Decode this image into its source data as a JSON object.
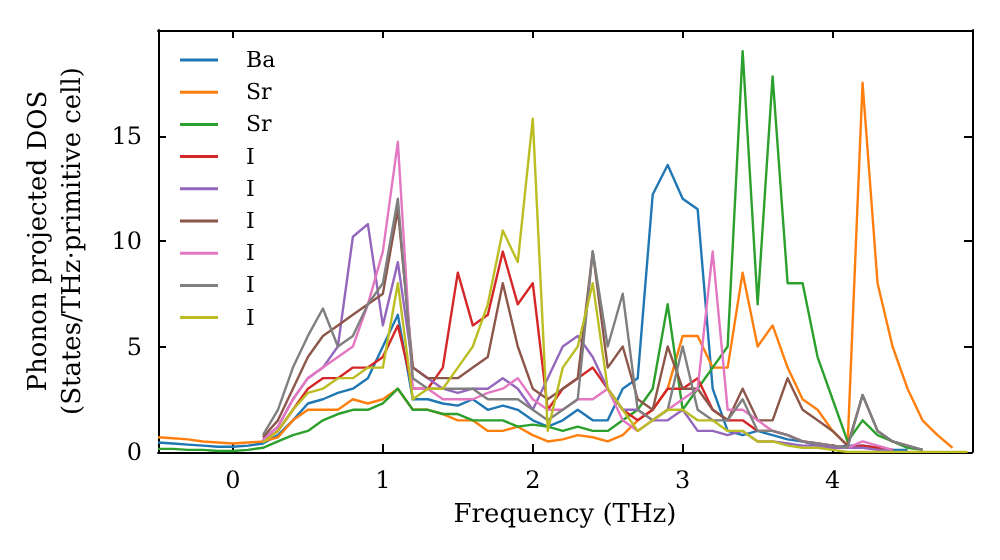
{
  "chart_data": {
    "type": "line",
    "xlabel": "Frequency (THz)",
    "ylabel": "Phonon projected DOS\n(States/THz·primitive cell)",
    "x": [
      -0.5,
      -0.4,
      -0.3,
      -0.2,
      -0.1,
      0,
      0.1,
      0.2,
      0.3,
      0.4,
      0.5,
      0.6,
      0.7,
      0.8,
      0.9,
      1,
      1.1,
      1.2,
      1.3,
      1.4,
      1.5,
      1.6,
      1.7,
      1.8,
      1.9,
      2,
      2.1,
      2.2,
      2.3,
      2.4,
      2.5,
      2.6,
      2.7,
      2.8,
      2.9,
      3,
      3.1,
      3.2,
      3.3,
      3.4,
      3.5,
      3.6,
      3.7,
      3.8,
      3.9,
      4,
      4.1,
      4.2,
      4.3,
      4.4,
      4.5,
      4.6,
      4.7,
      4.8,
      4.9
    ],
    "series": [
      {
        "name": "Ba",
        "color": "#1f77b4",
        "values": [
          0.45,
          0.4,
          0.35,
          0.3,
          0.25,
          0.25,
          0.3,
          0.4,
          0.8,
          1.5,
          2.3,
          2.5,
          2.8,
          3,
          3.5,
          5,
          6.5,
          2.5,
          2.5,
          2.3,
          2.2,
          2.5,
          2,
          2.2,
          2,
          1.5,
          1.2,
          1.5,
          2,
          1.5,
          1.5,
          3,
          3.5,
          12.2,
          13.6,
          12,
          11.5,
          3,
          1,
          0.8,
          1,
          0.8,
          0.6,
          0.5,
          0.3,
          0.2,
          0.3,
          0.3,
          0.2,
          0.1,
          0.1,
          null,
          null,
          null,
          null
        ]
      },
      {
        "name": "Sr",
        "color": "#ff7f0e",
        "values": [
          0.7,
          0.65,
          0.6,
          0.5,
          0.45,
          0.4,
          0.45,
          0.5,
          0.7,
          1.5,
          2,
          2,
          2,
          2.5,
          2.3,
          2.5,
          3,
          2,
          2,
          1.8,
          1.5,
          1.5,
          1,
          1,
          1.2,
          0.8,
          0.5,
          0.6,
          0.8,
          0.7,
          0.5,
          0.8,
          1.5,
          2,
          3,
          5.5,
          5.5,
          4,
          4,
          8.5,
          5,
          6,
          4,
          2.5,
          2,
          1,
          0.3,
          17.5,
          8,
          5,
          3,
          1.5,
          0.8,
          0.2,
          null
        ]
      },
      {
        "name": "Sr",
        "color": "#2ca02c",
        "values": [
          0.15,
          0.15,
          0.1,
          0.1,
          0.05,
          0.05,
          0.1,
          0.2,
          0.5,
          0.8,
          1,
          1.5,
          1.8,
          2,
          2,
          2.3,
          3,
          2,
          2,
          1.8,
          1.8,
          1.5,
          1.5,
          1.5,
          1.2,
          1.3,
          1.2,
          1,
          1.2,
          1,
          1,
          1.5,
          2,
          3,
          7,
          2,
          3,
          4,
          5,
          19,
          7,
          17.8,
          8,
          8,
          4.5,
          2.5,
          0.5,
          1.5,
          0.8,
          0.5,
          0.2,
          0.1,
          null,
          null,
          null
        ]
      },
      {
        "name": "I",
        "color": "#d62728",
        "values": [
          null,
          null,
          null,
          null,
          null,
          null,
          null,
          0.5,
          1,
          2,
          3,
          3.5,
          3.5,
          4,
          4,
          4.5,
          6,
          3,
          3,
          4,
          8.5,
          6,
          6.5,
          9.5,
          7,
          8,
          2,
          3,
          3.5,
          4,
          3,
          2,
          1.5,
          2,
          3,
          3,
          3.5,
          2,
          1.5,
          1.5,
          1,
          1,
          0.8,
          0.5,
          0.4,
          0.3,
          0.2,
          0.3,
          0.2,
          0.1,
          null,
          null,
          null,
          null,
          null
        ]
      },
      {
        "name": "I",
        "color": "#9467bd",
        "values": [
          null,
          null,
          null,
          null,
          null,
          null,
          null,
          0.6,
          1.2,
          2.5,
          3.5,
          4,
          5,
          10.2,
          10.8,
          6,
          9,
          4,
          3.5,
          3,
          2.8,
          3,
          3,
          3.5,
          3,
          2,
          3.5,
          5,
          5.5,
          4.5,
          3,
          2,
          2,
          1.5,
          1.5,
          2,
          1,
          1,
          0.8,
          1,
          0.5,
          0.5,
          0.4,
          0.3,
          0.3,
          0.2,
          0.2,
          0.2,
          0.1,
          0.1,
          null,
          null,
          null,
          null,
          null
        ]
      },
      {
        "name": "I",
        "color": "#8c564b",
        "values": [
          null,
          null,
          null,
          null,
          null,
          null,
          null,
          0.7,
          1.5,
          3,
          4.5,
          5.5,
          6,
          6.5,
          7,
          7.5,
          11.5,
          4,
          3.5,
          3.5,
          3.5,
          4,
          4.5,
          8,
          5,
          3,
          2.5,
          3,
          3.5,
          9.5,
          4,
          5,
          2.5,
          2,
          5,
          3,
          3,
          2,
          1.5,
          3,
          1.5,
          1.5,
          3.5,
          2,
          1.5,
          1,
          0.3,
          2.7,
          1,
          0.5,
          0.3,
          0.1,
          null,
          null,
          null
        ]
      },
      {
        "name": "I",
        "color": "#e377c2",
        "values": [
          null,
          null,
          null,
          null,
          null,
          null,
          null,
          0.55,
          1.2,
          2.5,
          3.5,
          4,
          4.5,
          5,
          7,
          9.5,
          14.7,
          3,
          3,
          2.5,
          2.5,
          2.5,
          2.8,
          3,
          3.5,
          2.5,
          2,
          2,
          2.5,
          2.5,
          3,
          1.5,
          1,
          1.5,
          2,
          2.5,
          3,
          9.5,
          2,
          2,
          1.5,
          1,
          0.8,
          0.5,
          0.4,
          0.3,
          0.2,
          0.5,
          0.3,
          0.1,
          null,
          null,
          null,
          null,
          null
        ]
      },
      {
        "name": "I",
        "color": "#7f7f7f",
        "values": [
          null,
          null,
          null,
          null,
          null,
          null,
          null,
          0.8,
          2,
          4,
          5.5,
          6.8,
          5,
          5.5,
          7,
          8,
          12,
          3.5,
          3,
          3,
          3,
          3,
          2.5,
          2.5,
          2.5,
          2,
          1.5,
          2,
          2.5,
          9.5,
          5,
          7.5,
          2,
          1.5,
          2,
          5,
          2,
          1.5,
          1.5,
          2.5,
          1,
          1,
          0.8,
          0.5,
          0.4,
          0.3,
          0.2,
          2.7,
          1,
          0.5,
          0.3,
          0.1,
          null,
          null,
          null
        ]
      },
      {
        "name": "I",
        "color": "#bcbd22",
        "values": [
          null,
          null,
          null,
          null,
          null,
          null,
          null,
          0.45,
          1,
          2,
          2.8,
          3,
          3.5,
          3.5,
          4,
          4,
          8,
          2.5,
          3,
          3,
          4,
          5,
          7,
          10.5,
          9,
          15.8,
          1,
          4,
          5,
          8,
          3,
          2,
          1,
          1.5,
          2,
          2,
          1.5,
          1.5,
          1,
          1,
          0.5,
          0.5,
          0.3,
          0.2,
          0.2,
          0.1,
          0,
          0,
          0,
          0,
          0,
          0,
          0,
          0,
          0
        ]
      }
    ],
    "xlim": [
      -0.5,
      4.93
    ],
    "ylim": [
      0,
      20
    ],
    "xticks": [
      0,
      1,
      2,
      3,
      4
    ],
    "yticks": [
      0,
      5,
      10,
      15
    ],
    "legend": "top left",
    "grid": false
  }
}
